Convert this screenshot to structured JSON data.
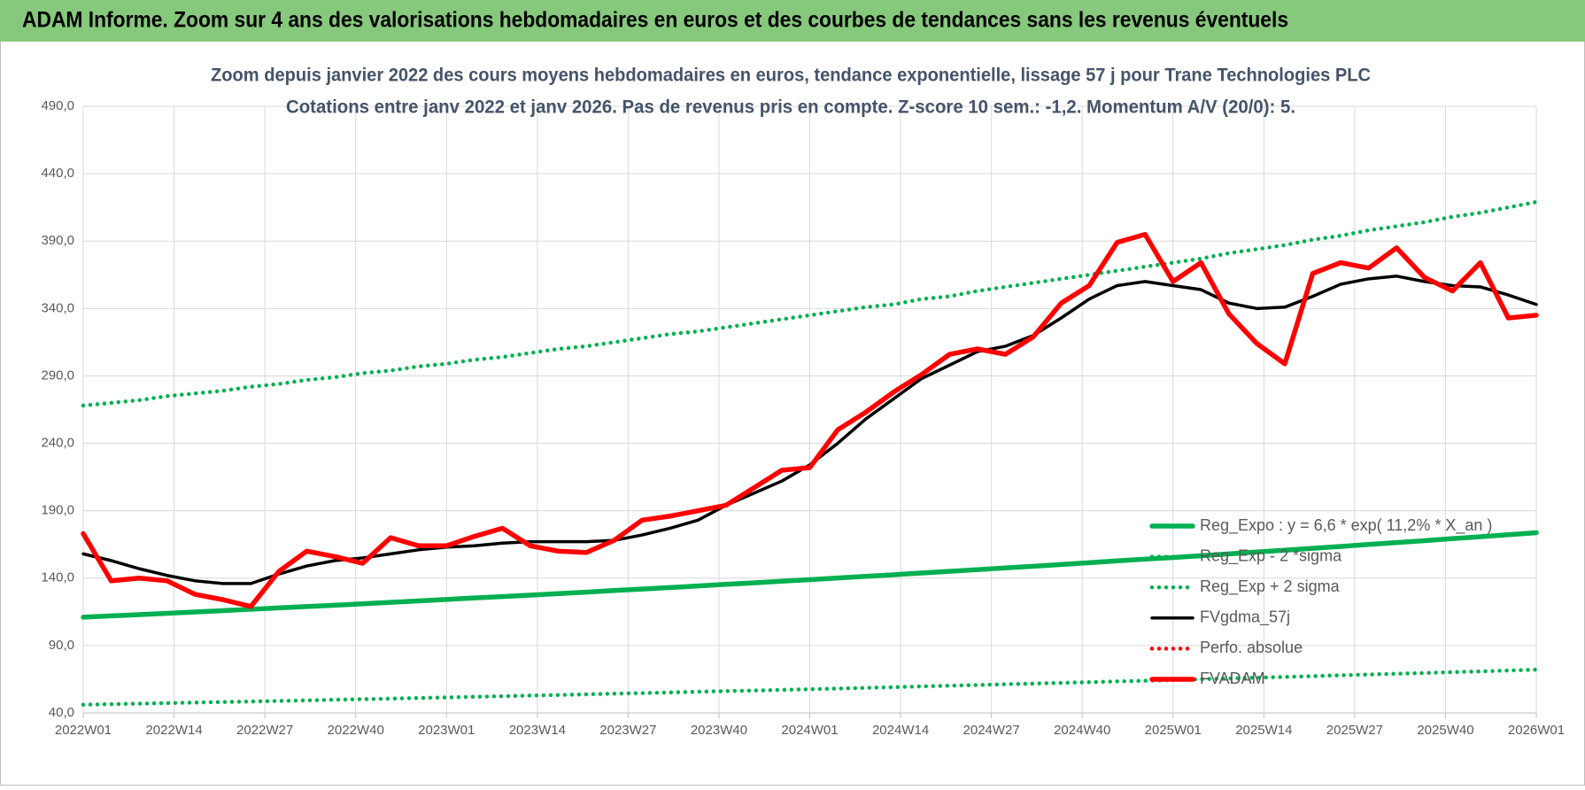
{
  "chart_data": {
    "type": "line",
    "page_title": "ADAM Informe. Zoom sur 4 ans des valorisations hebdomadaires en euros et des courbes de tendances sans les revenus éventuels",
    "title": "Zoom depuis janvier 2022 des cours moyens hebdomadaires en euros, tendance exponentielle, lissage 57 j pour Trane Technologies PLC",
    "subtitle": "Cotations entre janv 2022 et janv 2026. Pas de revenus pris en compte. Z-score 10 sem.: -1,2. Momentum A/V (20/0): 5.",
    "x": [
      0,
      4,
      8,
      12,
      16,
      20,
      24,
      28,
      32,
      36,
      40,
      44,
      48,
      52,
      56,
      60,
      64,
      68,
      72,
      76,
      80,
      84,
      88,
      92,
      96,
      100,
      104,
      108,
      112,
      116,
      120,
      124,
      128,
      132,
      136,
      140,
      144,
      148,
      152,
      156,
      160,
      164,
      168,
      172,
      176,
      180,
      184,
      188,
      192,
      196,
      200,
      204,
      208
    ],
    "xlim": [
      0,
      208
    ],
    "xticks": [
      {
        "value": 0,
        "label": "2022W01"
      },
      {
        "value": 13,
        "label": "2022W14"
      },
      {
        "value": 26,
        "label": "2022W27"
      },
      {
        "value": 39,
        "label": "2022W40"
      },
      {
        "value": 52,
        "label": "2023W01"
      },
      {
        "value": 65,
        "label": "2023W14"
      },
      {
        "value": 78,
        "label": "2023W27"
      },
      {
        "value": 91,
        "label": "2023W40"
      },
      {
        "value": 104,
        "label": "2024W01"
      },
      {
        "value": 117,
        "label": "2024W14"
      },
      {
        "value": 130,
        "label": "2024W27"
      },
      {
        "value": 143,
        "label": "2024W40"
      },
      {
        "value": 156,
        "label": "2025W01"
      },
      {
        "value": 169,
        "label": "2025W14"
      },
      {
        "value": 182,
        "label": "2025W27"
      },
      {
        "value": 195,
        "label": "2025W40"
      },
      {
        "value": 208,
        "label": "2026W01"
      }
    ],
    "ylim": [
      40,
      490
    ],
    "yticks": [
      {
        "value": 40,
        "label": "40,0"
      },
      {
        "value": 90,
        "label": "90,0"
      },
      {
        "value": 140,
        "label": "140,0"
      },
      {
        "value": 190,
        "label": "190,0"
      },
      {
        "value": 240,
        "label": "240,0"
      },
      {
        "value": 290,
        "label": "290,0"
      },
      {
        "value": 340,
        "label": "340,0"
      },
      {
        "value": 390,
        "label": "390,0"
      },
      {
        "value": 440,
        "label": "440,0"
      },
      {
        "value": 490,
        "label": "490,0"
      }
    ],
    "grid": true,
    "legend": "lower right",
    "series": [
      {
        "name": "Reg_Expo : y = 6,6 * exp( 11,2% *  X_an )",
        "color": "#00b050",
        "style": "solid",
        "values": [
          111.0,
          112.0,
          112.9,
          113.9,
          114.9,
          115.9,
          116.9,
          117.9,
          118.9,
          119.9,
          121.0,
          122.0,
          123.1,
          124.2,
          125.3,
          126.3,
          127.4,
          128.5,
          129.6,
          130.8,
          131.9,
          133.0,
          134.2,
          135.4,
          136.5,
          137.7,
          138.9,
          140.1,
          141.3,
          142.5,
          143.8,
          145.0,
          146.3,
          147.6,
          148.8,
          150.1,
          151.4,
          152.8,
          154.1,
          155.3,
          156.6,
          158.0,
          159.4,
          160.7,
          162.1,
          163.5,
          165.0,
          166.4,
          167.8,
          169.3,
          170.7,
          172.2,
          173.7
        ]
      },
      {
        "name": "Reg_Exp - 2 *sigma",
        "color": "#00b050",
        "style": "dotted",
        "values": [
          46.1,
          46.5,
          46.9,
          47.3,
          47.7,
          48.1,
          48.5,
          48.9,
          49.3,
          49.8,
          50.2,
          50.6,
          51.1,
          51.5,
          52.0,
          52.4,
          52.9,
          53.3,
          53.8,
          54.3,
          54.7,
          55.2,
          55.7,
          56.2,
          56.6,
          57.1,
          57.6,
          58.1,
          58.6,
          59.1,
          59.7,
          60.2,
          60.7,
          61.3,
          61.8,
          62.3,
          62.8,
          63.4,
          63.9,
          64.4,
          65.0,
          65.6,
          66.2,
          66.7,
          67.3,
          67.9,
          68.5,
          69.1,
          69.6,
          70.3,
          70.8,
          71.5,
          72.1
        ]
      },
      {
        "name": "Reg_Exp + 2 sigma",
        "color": "#00b050",
        "style": "dotted",
        "values": [
          268,
          270,
          272,
          275,
          277,
          279,
          282,
          284,
          287,
          289,
          292,
          294,
          297,
          299,
          302,
          304,
          307,
          310,
          312,
          315,
          318,
          321,
          323,
          326,
          329,
          332,
          335,
          338,
          341,
          343,
          347,
          349,
          353,
          356,
          359,
          362,
          365,
          368,
          371,
          374,
          377,
          381,
          384,
          387,
          391,
          394,
          398,
          401,
          404,
          408,
          411,
          415,
          419
        ]
      },
      {
        "name": "FVgdma_57j",
        "color": "#000000",
        "style": "solid",
        "values": [
          158,
          153,
          147,
          142,
          138,
          136,
          136,
          143,
          149,
          153,
          155,
          158,
          161,
          163,
          164,
          166,
          167,
          167,
          167,
          168,
          172,
          177,
          183,
          194,
          203,
          212,
          224,
          240,
          258,
          273,
          288,
          298,
          308,
          312,
          320,
          333,
          347,
          357,
          360,
          357,
          354,
          344,
          340,
          341,
          349,
          358,
          362,
          364,
          360,
          357,
          356,
          350,
          343
        ]
      },
      {
        "name": "Perfo. absolue",
        "color": "#ff0000",
        "style": "dotted",
        "values": [
          null,
          null,
          null,
          null,
          null,
          null,
          null,
          null,
          null,
          null,
          null,
          null,
          null,
          null,
          null,
          null,
          null,
          null,
          null,
          null,
          null,
          null,
          null,
          null,
          null,
          null,
          null,
          null,
          null,
          null,
          null,
          null,
          null,
          null,
          null,
          null,
          null,
          null,
          null,
          null,
          null,
          null,
          null,
          null,
          null,
          null,
          null,
          null,
          null,
          null,
          null,
          null,
          null
        ]
      },
      {
        "name": "FVADAM",
        "color": "#ff0000",
        "style": "solid",
        "values": [
          173,
          138,
          140,
          138,
          128,
          124,
          119,
          145,
          160,
          156,
          151,
          170,
          164,
          164,
          171,
          177,
          164,
          160,
          159,
          168,
          183,
          186,
          190,
          194,
          207,
          220,
          222,
          250,
          263,
          278,
          291,
          306,
          310,
          306,
          319,
          344,
          357,
          389,
          395,
          360,
          374,
          336,
          314,
          299,
          366,
          374,
          370,
          385,
          363,
          353,
          374,
          333,
          335
        ]
      }
    ]
  }
}
